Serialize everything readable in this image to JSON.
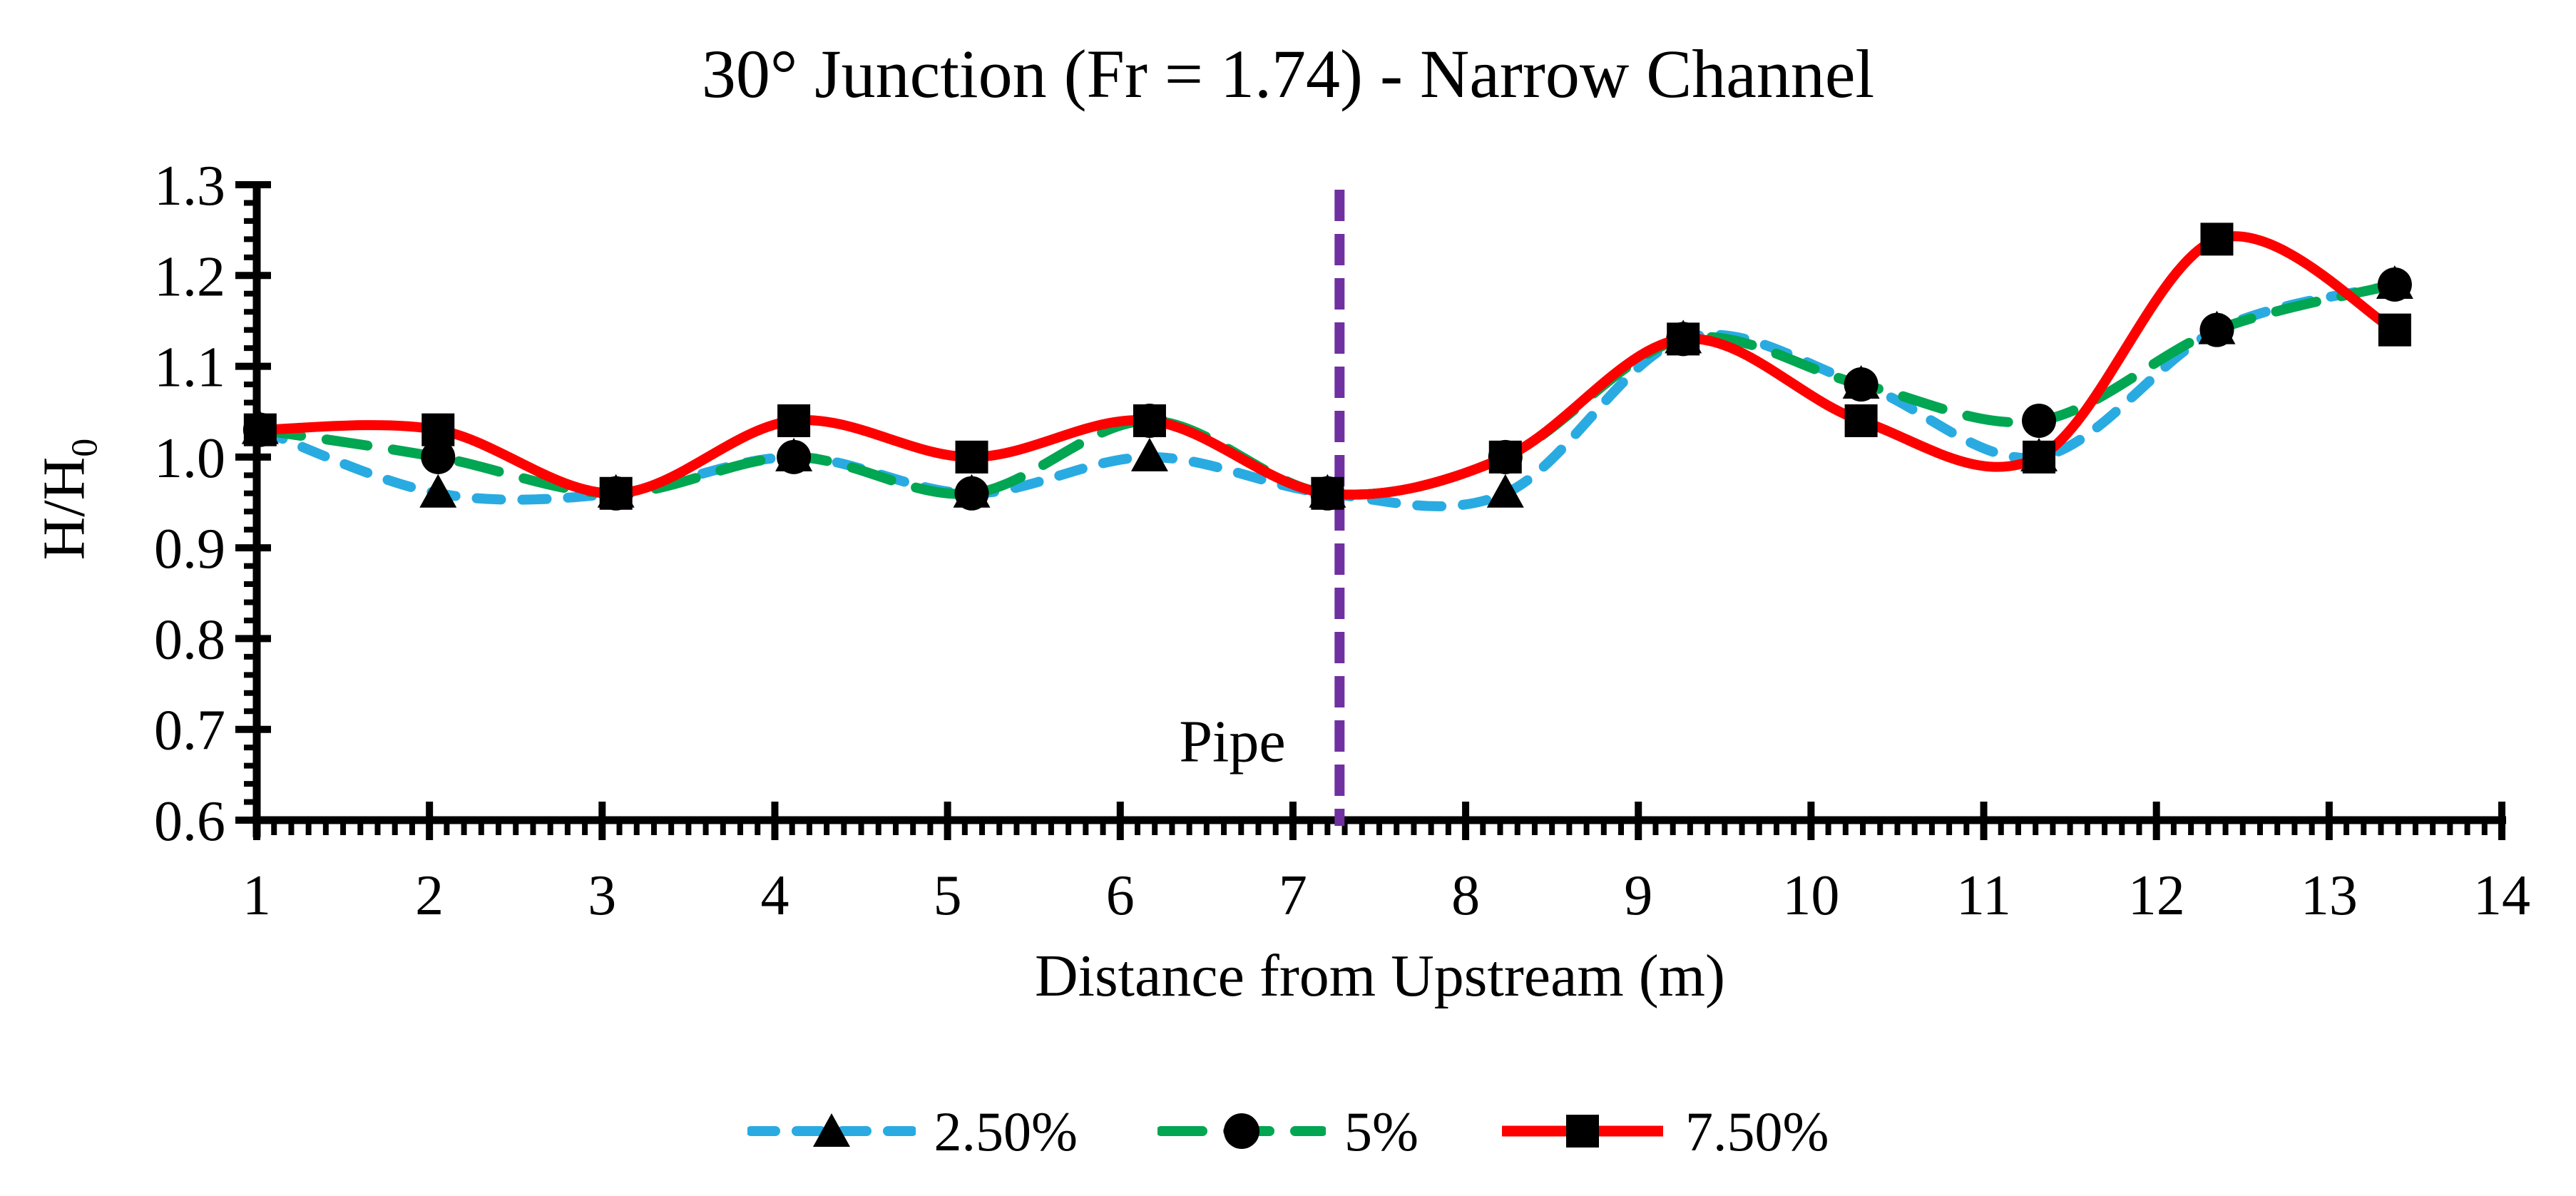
{
  "title": "30° Junction (Fr = 1.74) - Narrow Channel",
  "axes": {
    "x_title": "Distance from Upstream (m)",
    "y_title_main": "H/H",
    "y_title_sub": "0"
  },
  "chart_data": {
    "type": "line",
    "title": "30° Junction (Fr = 1.74) - Narrow Channel",
    "xlabel": "Distance from Upstream (m)",
    "ylabel": "H/H₀",
    "xlim": [
      1,
      14
    ],
    "ylim": [
      0.6,
      1.3
    ],
    "x_ticks": [
      1,
      2,
      3,
      4,
      5,
      6,
      7,
      8,
      9,
      10,
      11,
      12,
      13,
      14
    ],
    "y_ticks": [
      "1.3",
      "1.2",
      "1.1",
      "1.0",
      "0.9",
      "0.8",
      "0.7",
      "0.6"
    ],
    "x_minor_step": 0.1,
    "y_minor_step": 0.02,
    "grid": "off",
    "legend_position": "bottom",
    "marker_color": "#000000",
    "axis_color": "#000000",
    "x": [
      1.02,
      2.05,
      3.08,
      4.11,
      5.14,
      6.17,
      7.2,
      8.23,
      9.26,
      10.29,
      11.32,
      12.35,
      13.38
    ],
    "series": [
      {
        "name": "2.50%",
        "color": "#29ABE2",
        "marker": "triangle",
        "line_style": "dashed",
        "dash": "34 30",
        "values": [
          1.03,
          0.96,
          0.96,
          1.0,
          0.96,
          1.0,
          0.96,
          0.96,
          1.13,
          1.08,
          1.0,
          1.14,
          1.19
        ]
      },
      {
        "name": "5%",
        "color": "#00A651",
        "marker": "circle",
        "line_style": "dashed",
        "dash": "58 36",
        "values": [
          1.03,
          1.0,
          0.96,
          1.0,
          0.96,
          1.04,
          0.96,
          1.0,
          1.13,
          1.08,
          1.04,
          1.14,
          1.19
        ]
      },
      {
        "name": "7.50%",
        "color": "#FF0000",
        "marker": "square",
        "line_style": "solid",
        "dash": "",
        "values": [
          1.03,
          1.03,
          0.96,
          1.04,
          1.0,
          1.04,
          0.96,
          1.0,
          1.13,
          1.04,
          1.0,
          1.24,
          1.14
        ]
      }
    ],
    "vline": {
      "label": "Pipe",
      "x": 7.27,
      "color": "#7030A0",
      "style": "dashed"
    }
  }
}
